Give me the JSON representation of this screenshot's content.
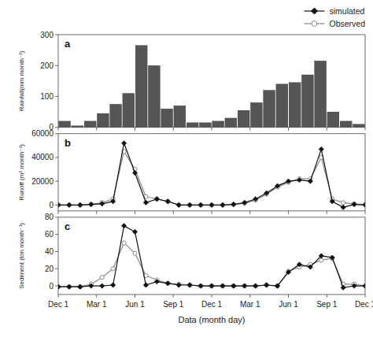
{
  "chart_data": [
    {
      "type": "bar",
      "values": [
        20,
        5,
        20,
        45,
        75,
        110,
        265,
        200,
        60,
        70,
        15,
        15,
        20,
        30,
        55,
        80,
        120,
        140,
        145,
        170,
        215,
        50,
        20,
        10
      ],
      "color": "#555555",
      "ylabel": "Rainfall(mm month⁻¹)",
      "annotation": "a",
      "xlim": [
        0,
        24
      ],
      "xticks": [
        0,
        3,
        6,
        9,
        12,
        15,
        18,
        21,
        24
      ],
      "ylim": [
        0,
        300
      ],
      "yticks": [
        0,
        100,
        200,
        300
      ],
      "tick_labels": "y",
      "grid": false
    },
    {
      "type": "line",
      "series": [
        {
          "name": "simulated",
          "color": "#111111",
          "marker": "diamond",
          "values": [
            0,
            0,
            0,
            500,
            1000,
            3000,
            52000,
            27000,
            2000,
            5000,
            3000,
            0,
            0,
            0,
            0,
            0,
            500,
            2000,
            5000,
            10000,
            16000,
            20000,
            21000,
            20000,
            47000,
            3000,
            -2000,
            500,
            0
          ]
        },
        {
          "name": "Observed",
          "color": "#888888",
          "marker": "open-circle",
          "values": [
            0,
            0,
            0,
            500,
            2000,
            5000,
            45000,
            30000,
            7000,
            5000,
            3000,
            0,
            0,
            0,
            0,
            0,
            500,
            1500,
            4000,
            9000,
            15000,
            19000,
            22000,
            22000,
            40000,
            5000,
            2000,
            1000,
            500
          ]
        }
      ],
      "legend": "upper right",
      "ylabel": "Runoff (m³ month⁻¹)",
      "annotation": "b",
      "xlim": [
        0,
        24
      ],
      "xticks": [
        0,
        3,
        6,
        9,
        12,
        15,
        18,
        21,
        24
      ],
      "ylim": [
        -5000,
        60000
      ],
      "yticks": [
        0,
        20000,
        40000,
        60000
      ],
      "tick_labels": "y",
      "grid": false
    },
    {
      "type": "line",
      "series": [
        {
          "color": "#111111",
          "marker": "diamond",
          "values": [
            -1,
            -1,
            -1,
            0,
            0,
            1,
            70,
            63,
            1,
            5,
            3,
            1,
            1,
            0,
            0,
            0,
            0,
            0,
            0,
            1,
            0,
            16,
            25,
            22,
            35,
            33,
            -2,
            0,
            0
          ]
        },
        {
          "color": "#888888",
          "marker": "open-circle",
          "values": [
            -1,
            -1,
            -1,
            2,
            10,
            20,
            50,
            38,
            12,
            7,
            3,
            2,
            1,
            0,
            0,
            0,
            0,
            0,
            0,
            1,
            0,
            17,
            22,
            25,
            30,
            32,
            2,
            2,
            0
          ]
        }
      ],
      "ylabel": "Sediment (ton month⁻¹)",
      "xlabel": "Data (month day)",
      "annotation": "c",
      "xlim": [
        0,
        24
      ],
      "xticks": [
        {
          "value": 0,
          "label": "Dec 1"
        },
        {
          "value": 3,
          "label": "Mar 1"
        },
        {
          "value": 6,
          "label": "Jun 1"
        },
        {
          "value": 9,
          "label": "Sep 1"
        },
        {
          "value": 12,
          "label": "Dec 1"
        },
        {
          "value": 15,
          "label": "Mar 1"
        },
        {
          "value": 18,
          "label": "Jun 1"
        },
        {
          "value": 21,
          "label": "Sep 1"
        },
        {
          "value": 24,
          "label": "Dec 1"
        }
      ],
      "ylim": [
        -10,
        80
      ],
      "yticks": [
        0,
        20,
        40,
        60,
        80
      ],
      "grid": false
    }
  ]
}
